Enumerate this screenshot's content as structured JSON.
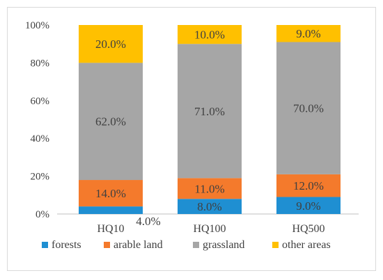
{
  "chart_data": {
    "type": "bar",
    "stacked": true,
    "percent": true,
    "categories": [
      "HQ10",
      "HQ100",
      "HQ500"
    ],
    "series": [
      {
        "name": "forests",
        "color": "#1f8fd2",
        "values": [
          4.0,
          8.0,
          9.0
        ],
        "labels": [
          "4.0%",
          "8.0%",
          "9.0%"
        ]
      },
      {
        "name": "arable land",
        "color": "#f47a2c",
        "values": [
          14.0,
          11.0,
          12.0
        ],
        "labels": [
          "14.0%",
          "11.0%",
          "12.0%"
        ]
      },
      {
        "name": "grassland",
        "color": "#a6a6a6",
        "values": [
          62.0,
          71.0,
          70.0
        ],
        "labels": [
          "62.0%",
          "71.0%",
          "70.0%"
        ]
      },
      {
        "name": "other areas",
        "color": "#ffc000",
        "values": [
          20.0,
          10.0,
          9.0
        ],
        "labels": [
          "20.0%",
          "10.0%",
          "9.0%"
        ]
      }
    ],
    "ylim": [
      0,
      100
    ],
    "yticks": [
      "0%",
      "20%",
      "40%",
      "60%",
      "80%",
      "100%"
    ],
    "grid": false,
    "legend": "bottom"
  }
}
